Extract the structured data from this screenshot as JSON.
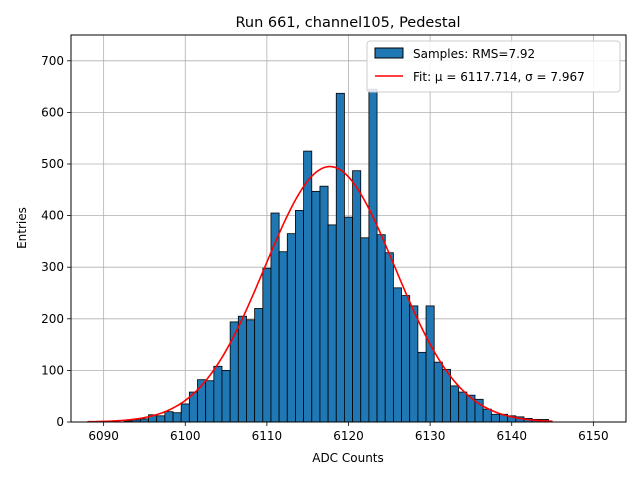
{
  "chart_data": {
    "type": "bar",
    "title": "Run 661, channel105, Pedestal",
    "xlabel": "ADC Counts",
    "ylabel": "Entries",
    "xlim": [
      6086,
      6154
    ],
    "ylim": [
      0,
      750
    ],
    "xticks": [
      6090,
      6100,
      6110,
      6120,
      6130,
      6140,
      6150
    ],
    "yticks": [
      0,
      100,
      200,
      300,
      400,
      500,
      600,
      700
    ],
    "grid": true,
    "legend_position": "top-right",
    "bin_width": 1,
    "bins": [
      6093,
      6094,
      6095,
      6096,
      6097,
      6098,
      6099,
      6100,
      6101,
      6102,
      6103,
      6104,
      6105,
      6106,
      6107,
      6108,
      6109,
      6110,
      6111,
      6112,
      6113,
      6114,
      6115,
      6116,
      6117,
      6118,
      6119,
      6120,
      6121,
      6122,
      6123,
      6124,
      6125,
      6126,
      6127,
      6128,
      6129,
      6130,
      6131,
      6132,
      6133,
      6134,
      6135,
      6136,
      6137,
      6138,
      6139,
      6140,
      6141,
      6142,
      6143,
      6144
    ],
    "counts": [
      2,
      4,
      6,
      14,
      12,
      20,
      18,
      35,
      58,
      82,
      80,
      108,
      100,
      194,
      205,
      198,
      220,
      298,
      405,
      330,
      365,
      410,
      525,
      447,
      457,
      382,
      637,
      397,
      487,
      357,
      645,
      363,
      328,
      260,
      245,
      225,
      135,
      225,
      116,
      102,
      70,
      58,
      52,
      44,
      25,
      15,
      15,
      12,
      10,
      7,
      5,
      5
    ],
    "series": [
      {
        "name": "Samples: RMS=7.92",
        "kind": "histogram",
        "color": "#1f77b4",
        "edgecolor": "#000000"
      },
      {
        "name": "Fit: μ = 6117.714, σ = 7.967",
        "kind": "gaussian-fit",
        "mu": 6117.714,
        "sigma": 7.967,
        "peak": 495,
        "x_range": [
          6088,
          6145
        ],
        "color": "#ff0000"
      }
    ]
  }
}
